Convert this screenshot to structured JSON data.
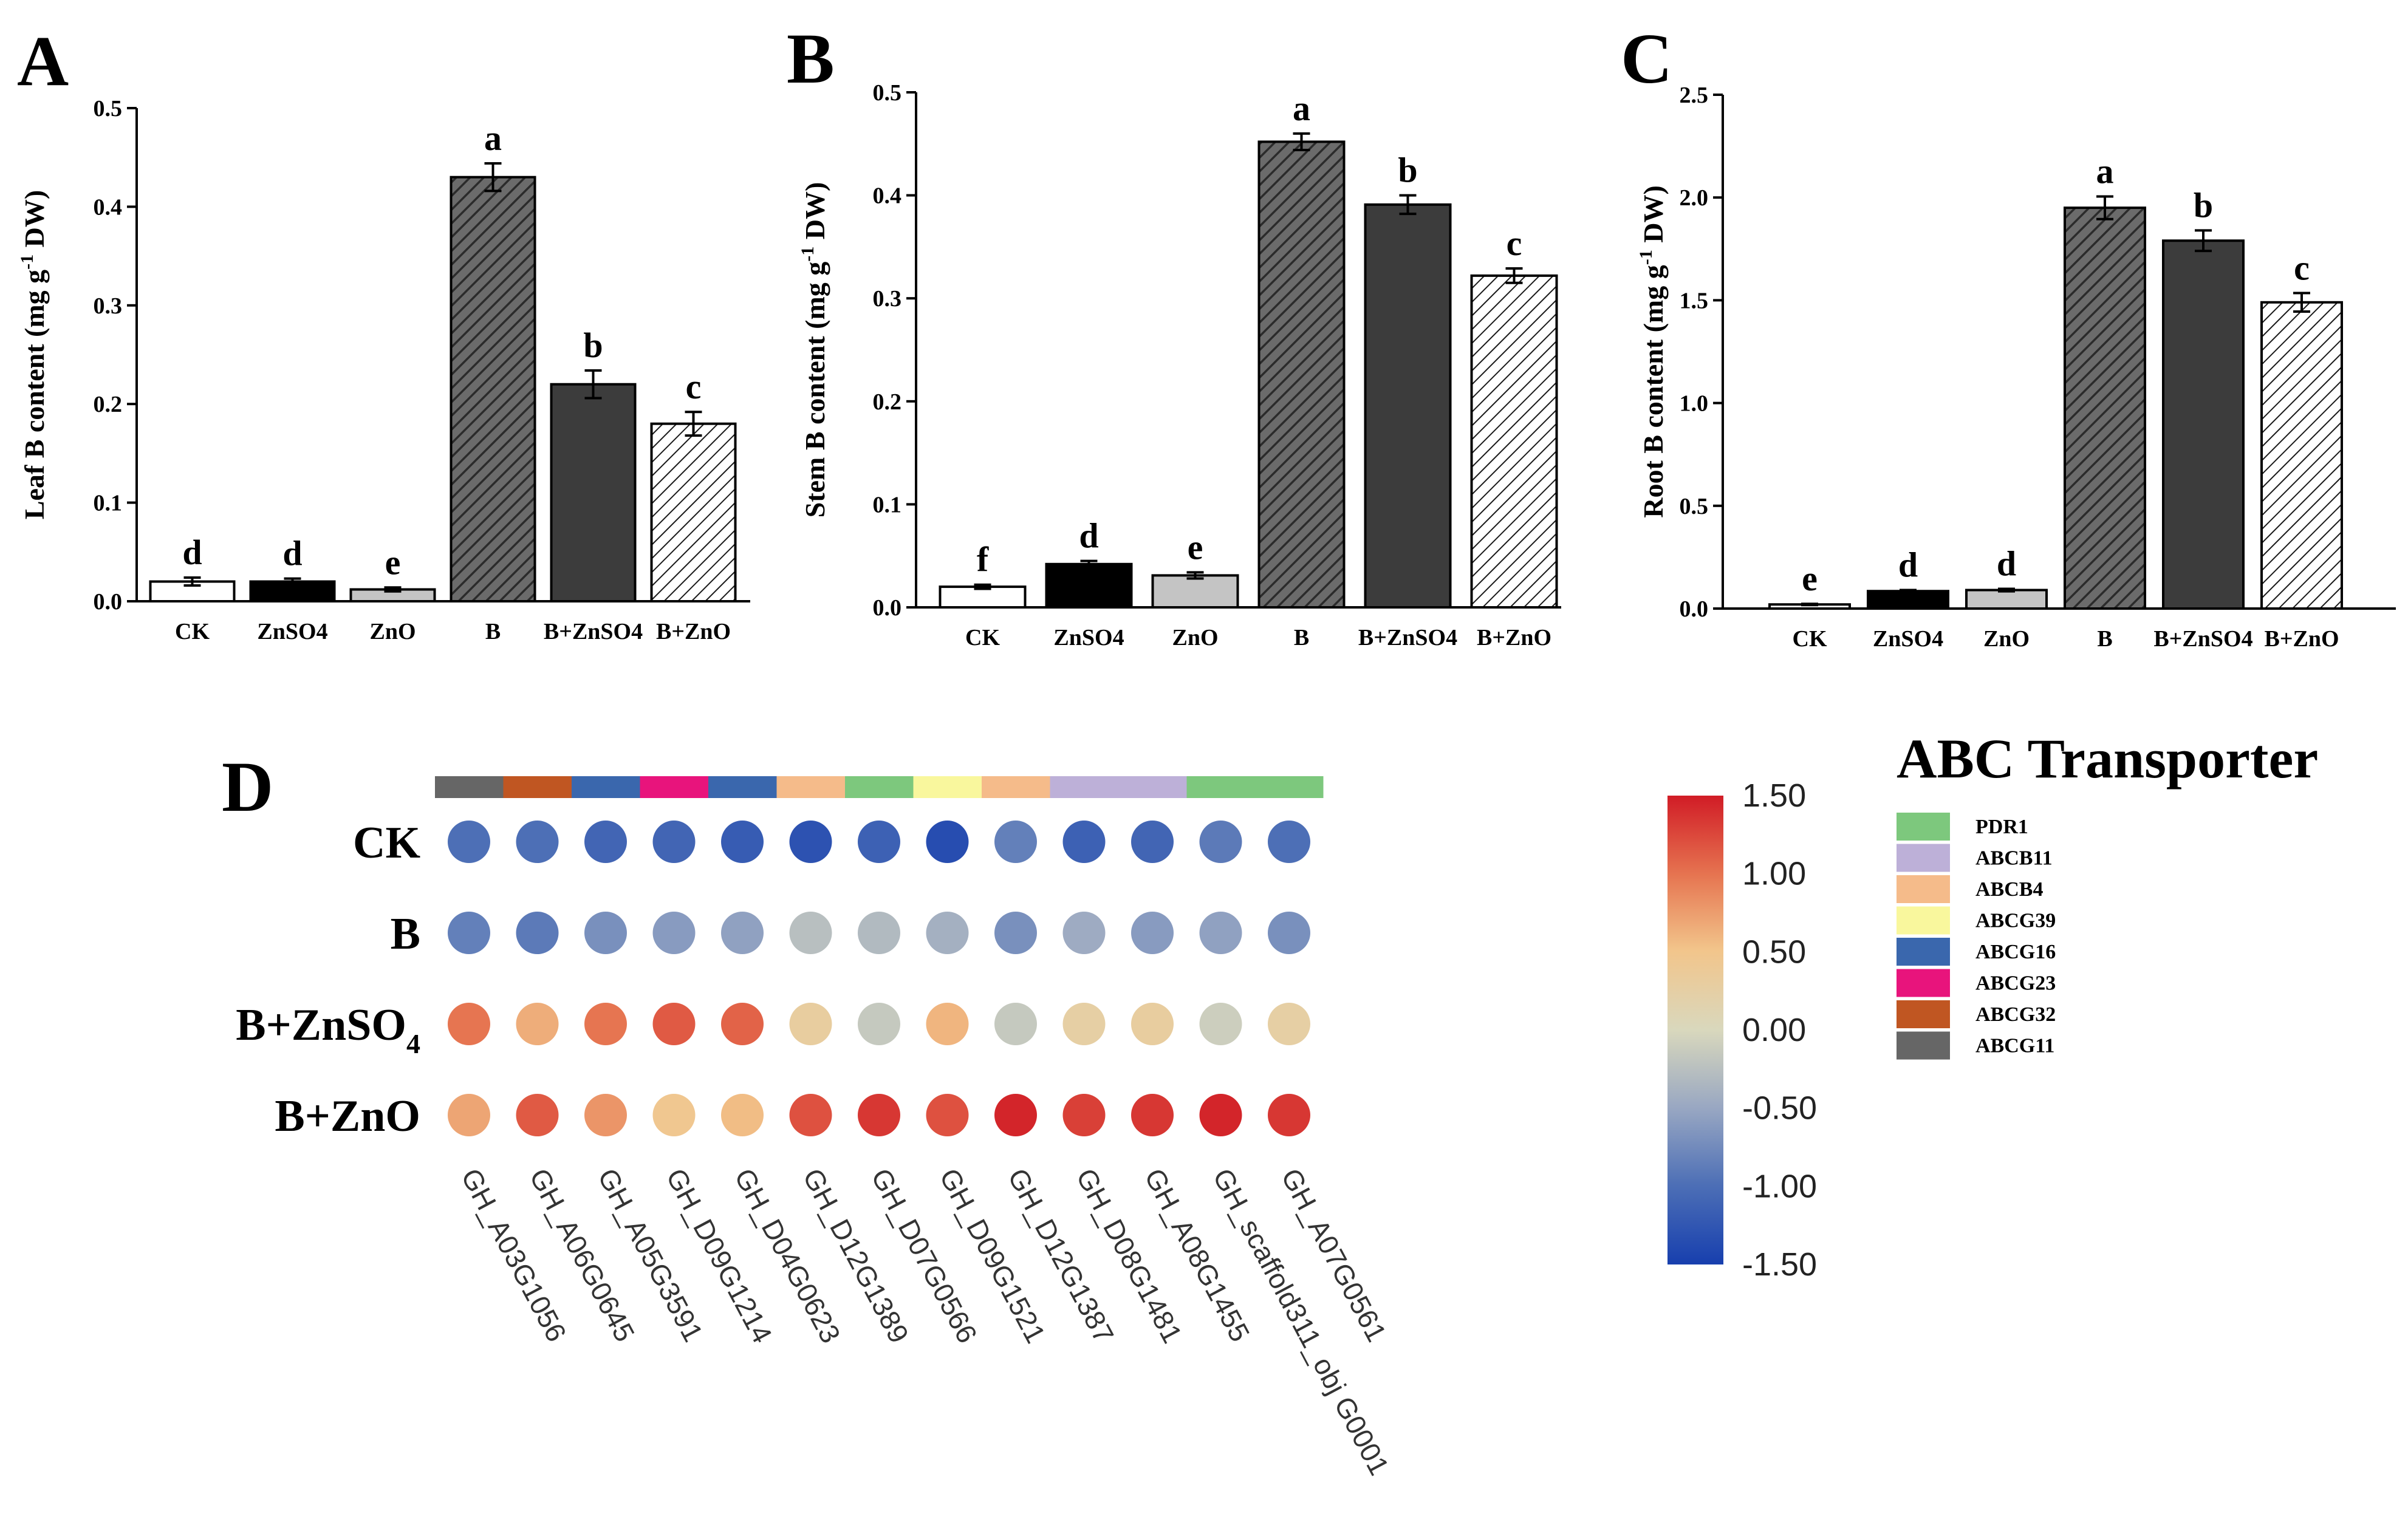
{
  "panels": {
    "A": "A",
    "B": "B",
    "C": "C",
    "D": "D"
  },
  "chart_data": [
    {
      "id": "A",
      "type": "bar",
      "categories": [
        "CK",
        "ZnSO4",
        "ZnO",
        "B",
        "B+ZnSO4",
        "B+ZnO"
      ],
      "values": [
        0.02,
        0.02,
        0.012,
        0.43,
        0.22,
        0.18
      ],
      "errors": [
        0.004,
        0.003,
        0.002,
        0.014,
        0.014,
        0.012
      ],
      "significance": [
        "d",
        "d",
        "e",
        "a",
        "b",
        "c"
      ],
      "ylabel_main": "Leaf B content (mg g",
      "ylabel_sup": "-1",
      "ylabel_tail": " DW)",
      "ylim": [
        0,
        0.5
      ],
      "yticks": [
        "0.0",
        "0.1",
        "0.2",
        "0.3",
        "0.4",
        "0.5"
      ],
      "fills": [
        "white",
        "black",
        "lightgray",
        "hatch-dark",
        "darkgray",
        "hatch-light"
      ]
    },
    {
      "id": "B",
      "type": "bar",
      "categories": [
        "CK",
        "ZnSO4",
        "ZnO",
        "B",
        "B+ZnSO4",
        "B+ZnO"
      ],
      "values": [
        0.02,
        0.042,
        0.031,
        0.452,
        0.391,
        0.322
      ],
      "errors": [
        0.002,
        0.003,
        0.003,
        0.008,
        0.009,
        0.007
      ],
      "significance": [
        "f",
        "d",
        "e",
        "a",
        "b",
        "c"
      ],
      "ylabel_main": "Stem B content (mg g",
      "ylabel_sup": "-1",
      "ylabel_tail": " DW)",
      "ylim": [
        0,
        0.5
      ],
      "yticks": [
        "0.0",
        "0.1",
        "0.2",
        "0.3",
        "0.4",
        "0.5"
      ],
      "fills": [
        "white",
        "black",
        "lightgray",
        "hatch-dark",
        "darkgray",
        "hatch-light"
      ]
    },
    {
      "id": "C",
      "type": "bar",
      "categories": [
        "CK",
        "ZnSO4",
        "ZnO",
        "B",
        "B+ZnSO4",
        "B+ZnO"
      ],
      "values": [
        0.02,
        0.085,
        0.09,
        1.95,
        1.79,
        1.49
      ],
      "errors": [
        0.003,
        0.005,
        0.006,
        0.055,
        0.05,
        0.045
      ],
      "significance": [
        "e",
        "d",
        "d",
        "a",
        "b",
        "c"
      ],
      "ylabel_main": "Root B content (mg g",
      "ylabel_sup": "-1",
      "ylabel_tail": " DW)",
      "ylim": [
        0,
        2.5
      ],
      "yticks": [
        "0.0",
        "0.5",
        "1.0",
        "1.5",
        "2.0",
        "2.5"
      ],
      "fills": [
        "white",
        "black",
        "lightgray",
        "hatch-dark",
        "darkgray",
        "hatch-light"
      ]
    },
    {
      "id": "D",
      "type": "heatmap",
      "rows": [
        "CK",
        "B",
        "B+ZnSO",
        "B+ZnO"
      ],
      "row_subscripts": [
        "",
        "",
        "4",
        ""
      ],
      "genes": [
        "GH_A03G1056",
        "GH_A06G0645",
        "GH_A05G3591",
        "GH_D09G1214",
        "GH_D04G0623",
        "GH_D12G1389",
        "GH_D07G0566",
        "GH_D09G1521",
        "GH_D12G1387",
        "GH_D08G1481",
        "GH_A08G1455",
        "GH_scaffold311_obj G0001",
        "GH_A07G0561"
      ],
      "gene_families": [
        "ABCG11",
        "ABCG32",
        "ABCG16",
        "ABCG23",
        "ABCG16",
        "ABCB4",
        "PDR1",
        "ABCG39",
        "ABCB4",
        "ABCB11",
        "ABCB11",
        "PDR1",
        "PDR1"
      ],
      "values": [
        [
          -1.0,
          -1.0,
          -1.1,
          -1.1,
          -1.2,
          -1.3,
          -1.15,
          -1.35,
          -0.85,
          -1.15,
          -1.1,
          -0.9,
          -1.0
        ],
        [
          -0.85,
          -0.9,
          -0.7,
          -0.6,
          -0.55,
          -0.25,
          -0.3,
          -0.4,
          -0.7,
          -0.45,
          -0.6,
          -0.55,
          -0.7
        ],
        [
          1.0,
          0.65,
          1.0,
          1.15,
          1.1,
          0.3,
          -0.15,
          0.6,
          -0.15,
          0.25,
          0.3,
          -0.1,
          0.25
        ],
        [
          0.7,
          1.15,
          0.8,
          0.45,
          0.55,
          1.2,
          1.35,
          1.2,
          1.45,
          1.3,
          1.35,
          1.45,
          1.35
        ]
      ],
      "colorbar_ticks": [
        "1.50",
        "1.00",
        "0.50",
        "0.00",
        "-0.50",
        "-1.00",
        "-1.50"
      ],
      "vmin": -1.5,
      "vmax": 1.5,
      "legend_title": "ABC Transporter",
      "legend": [
        {
          "name": "PDR1",
          "color": "#7dc87d"
        },
        {
          "name": "ABCB11",
          "color": "#bdb0d8"
        },
        {
          "name": "ABCB4",
          "color": "#f5bb8a"
        },
        {
          "name": "ABCG39",
          "color": "#f9f79d"
        },
        {
          "name": "ABCG16",
          "color": "#3a67ad"
        },
        {
          "name": "ABCG23",
          "color": "#e8147c"
        },
        {
          "name": "ABCG32",
          "color": "#c05622"
        },
        {
          "name": "ABCG11",
          "color": "#666666"
        }
      ]
    }
  ]
}
